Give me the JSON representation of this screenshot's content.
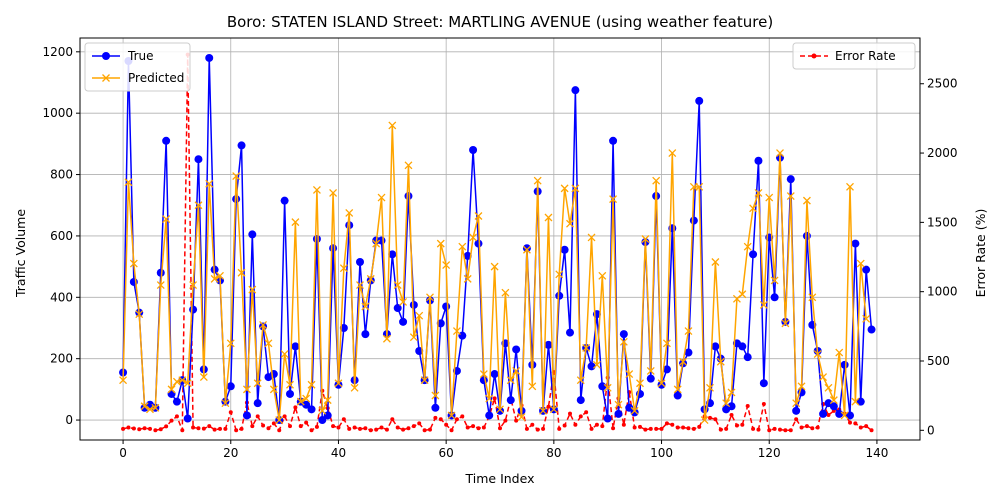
{
  "chart_data": {
    "type": "line",
    "title": "Boro: STATEN ISLAND Street: MARTLING AVENUE (using weather feature)",
    "xlabel": "Time Index",
    "ylabel": "Traffic Volume",
    "y2label": "Error Rate (%)",
    "xlim": [
      -8,
      148
    ],
    "ylim": [
      -65,
      1245
    ],
    "y2lim": [
      -70,
      2830
    ],
    "x_ticks": [
      0,
      20,
      40,
      60,
      80,
      100,
      120,
      140
    ],
    "y_ticks": [
      0,
      200,
      400,
      600,
      800,
      1000,
      1200
    ],
    "y2_ticks": [
      0,
      500,
      1000,
      1500,
      2000,
      2500
    ],
    "grid": true,
    "legend_left_position": "upper-left",
    "legend_right_position": "upper-right",
    "colors": {
      "true": "#0000ff",
      "predicted": "#ffa500",
      "error": "#ff0000"
    },
    "series": [
      {
        "name": "True",
        "values": [
          155,
          1170,
          450,
          350,
          40,
          50,
          40,
          480,
          910,
          85,
          60,
          130,
          5,
          360,
          850,
          165,
          1180,
          490,
          455,
          60,
          110,
          720,
          895,
          15,
          605,
          55,
          305,
          140,
          150,
          0,
          715,
          85,
          240,
          60,
          50,
          35,
          590,
          0,
          15,
          560,
          115,
          300,
          635,
          130,
          515,
          280,
          455,
          585,
          585,
          280,
          540,
          365,
          320,
          730,
          375,
          225,
          130,
          390,
          40,
          315,
          370,
          15,
          160,
          275,
          535,
          880,
          575,
          130,
          15,
          150,
          30,
          250,
          65,
          230,
          30,
          560,
          180,
          745,
          30,
          245,
          35,
          405,
          555,
          285,
          1075,
          65,
          235,
          175,
          345,
          110,
          5,
          910,
          20,
          280,
          40,
          25,
          85,
          580,
          135,
          730,
          115,
          165,
          625,
          80,
          185,
          220,
          650,
          1040,
          35,
          55,
          240,
          200,
          35,
          45,
          250,
          240,
          205,
          540,
          845,
          120,
          595,
          400,
          855,
          320,
          785,
          30,
          90,
          600,
          310,
          225,
          20,
          55,
          45,
          20,
          180,
          15,
          575,
          60,
          490,
          295
        ]
      },
      {
        "name": "Predicted",
        "values": [
          130,
          775,
          510,
          345,
          45,
          35,
          40,
          440,
          655,
          100,
          125,
          130,
          120,
          440,
          700,
          140,
          770,
          460,
          470,
          55,
          250,
          795,
          480,
          100,
          425,
          120,
          310,
          250,
          100,
          0,
          215,
          115,
          645,
          60,
          70,
          115,
          750,
          30,
          65,
          740,
          120,
          495,
          675,
          105,
          440,
          370,
          460,
          575,
          725,
          265,
          960,
          440,
          385,
          830,
          270,
          340,
          130,
          400,
          80,
          575,
          505,
          15,
          290,
          565,
          460,
          595,
          665,
          150,
          70,
          500,
          35,
          415,
          130,
          160,
          10,
          555,
          110,
          780,
          30,
          660,
          35,
          475,
          755,
          640,
          755,
          130,
          235,
          595,
          180,
          470,
          105,
          720,
          50,
          255,
          150,
          30,
          120,
          590,
          160,
          780,
          120,
          250,
          870,
          100,
          190,
          290,
          760,
          760,
          0,
          105,
          515,
          190,
          55,
          90,
          395,
          410,
          565,
          690,
          740,
          375,
          725,
          455,
          870,
          315,
          730,
          55,
          110,
          715,
          400,
          215,
          140,
          105,
          65,
          220,
          15,
          760,
          60,
          510,
          330
        ]
      },
      {
        "name": "Error Rate",
        "axis": "right",
        "values": [
          10,
          20,
          13,
          8,
          15,
          10,
          0,
          8,
          28,
          70,
          100,
          0,
          2710,
          20,
          15,
          12,
          30,
          5,
          10,
          10,
          130,
          0,
          10,
          200,
          30,
          100,
          35,
          15,
          50,
          0,
          100,
          30,
          165,
          30,
          55,
          0,
          25,
          285,
          160,
          30,
          20,
          80,
          10,
          20,
          10,
          15,
          0,
          5,
          20,
          5,
          80,
          20,
          5,
          15,
          30,
          50,
          0,
          5,
          90,
          80,
          40,
          0,
          80,
          100,
          20,
          30,
          15,
          20,
          100,
          230,
          15,
          70,
          230,
          70,
          180,
          10,
          40,
          5,
          10,
          170,
          420,
          10,
          35,
          120,
          40,
          100,
          130,
          10,
          40,
          30,
          380,
          15,
          230,
          40,
          275,
          20,
          25,
          5,
          10,
          10,
          10,
          50,
          40,
          20,
          20,
          15,
          10,
          25,
          100,
          90,
          80,
          5,
          10,
          110,
          35,
          40,
          175,
          10,
          5,
          190,
          0,
          10,
          5,
          0,
          0,
          80,
          20,
          30,
          15,
          20,
          190,
          110,
          140,
          150,
          120,
          55,
          50,
          20,
          30,
          0
        ]
      }
    ]
  }
}
